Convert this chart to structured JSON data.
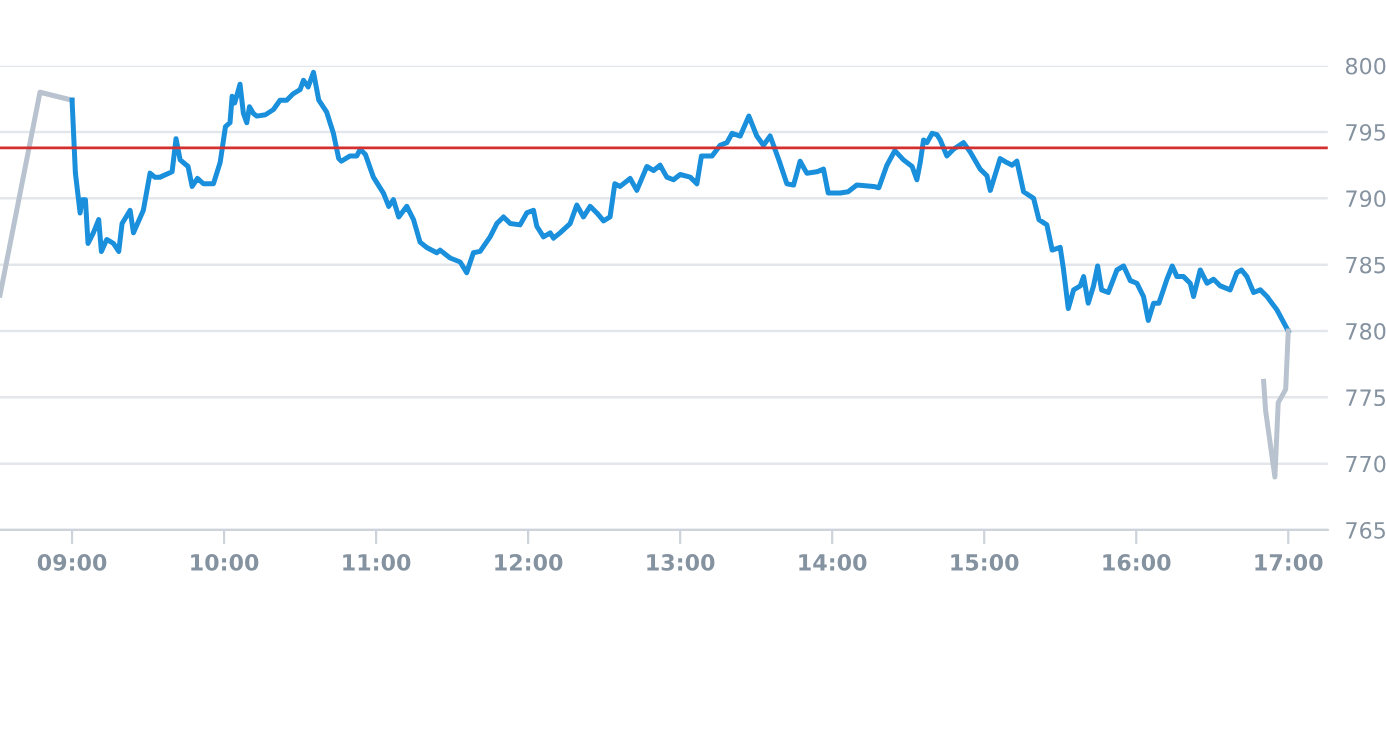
{
  "chart_data": {
    "type": "line",
    "xlim": [
      8.526,
      17.26
    ],
    "ylim": [
      765,
      800
    ],
    "xticks": [
      {
        "value": 9,
        "label": "09:00"
      },
      {
        "value": 10,
        "label": "10:00"
      },
      {
        "value": 11,
        "label": "11:00"
      },
      {
        "value": 12,
        "label": "12:00"
      },
      {
        "value": 13,
        "label": "13:00"
      },
      {
        "value": 14,
        "label": "14:00"
      },
      {
        "value": 15,
        "label": "15:00"
      },
      {
        "value": 16,
        "label": "16:00"
      },
      {
        "value": 17,
        "label": "17:00"
      }
    ],
    "yticks": [
      765,
      770,
      775,
      780,
      785,
      790,
      795,
      800
    ],
    "grid": "y",
    "legend": false,
    "marker": "none",
    "line_style": "solid",
    "ref_lines": [
      {
        "axis": "y",
        "value": 793.8,
        "color": "#d32f2f"
      }
    ],
    "series": [
      {
        "color": "#b8c3cf",
        "x": [
          8.526,
          8.789,
          9.0
        ],
        "values": [
          782.7,
          798.0,
          797.4
        ]
      },
      {
        "color": "#1a8fdc",
        "x": [
          9.0,
          9.022,
          9.053,
          9.066,
          9.088,
          9.105,
          9.14,
          9.175,
          9.193,
          9.228,
          9.272,
          9.307,
          9.329,
          9.382,
          9.404,
          9.469,
          9.513,
          9.544,
          9.579,
          9.658,
          9.684,
          9.711,
          9.763,
          9.79,
          9.825,
          9.864,
          9.93,
          9.974,
          10.009,
          10.039,
          10.053,
          10.07,
          10.105,
          10.127,
          10.149,
          10.167,
          10.193,
          10.215,
          10.272,
          10.325,
          10.368,
          10.412,
          10.456,
          10.5,
          10.522,
          10.553,
          10.588,
          10.623,
          10.675,
          10.719,
          10.754,
          10.772,
          10.829,
          10.873,
          10.895,
          10.93,
          10.982,
          11.048,
          11.083,
          11.114,
          11.149,
          11.202,
          11.246,
          11.289,
          11.333,
          11.399,
          11.421,
          11.487,
          11.553,
          11.596,
          11.64,
          11.684,
          11.75,
          11.794,
          11.838,
          11.882,
          11.947,
          11.991,
          12.035,
          12.057,
          12.101,
          12.145,
          12.167,
          12.21,
          12.276,
          12.32,
          12.364,
          12.408,
          12.452,
          12.496,
          12.539,
          12.57,
          12.605,
          12.671,
          12.715,
          12.781,
          12.825,
          12.868,
          12.912,
          12.956,
          13.0,
          13.066,
          13.11,
          13.14,
          13.21,
          13.263,
          13.307,
          13.342,
          13.395,
          13.452,
          13.504,
          13.548,
          13.592,
          13.649,
          13.702,
          13.746,
          13.789,
          13.833,
          13.899,
          13.943,
          13.974,
          14.053,
          14.105,
          14.162,
          14.272,
          14.307,
          14.36,
          14.412,
          14.469,
          14.526,
          14.557,
          14.579,
          14.601,
          14.623,
          14.658,
          14.689,
          14.711,
          14.754,
          14.798,
          14.864,
          14.908,
          14.974,
          15.018,
          15.04,
          15.105,
          15.149,
          15.184,
          15.215,
          15.259,
          15.325,
          15.36,
          15.412,
          15.447,
          15.5,
          15.522,
          15.553,
          15.588,
          15.632,
          15.654,
          15.684,
          15.719,
          15.746,
          15.772,
          15.816,
          15.873,
          15.917,
          15.961,
          16.004,
          16.048,
          16.079,
          16.114,
          16.149,
          16.202,
          16.237,
          16.268,
          16.311,
          16.355,
          16.377,
          16.421,
          16.465,
          16.509,
          16.553,
          16.618,
          16.662,
          16.693,
          16.728,
          16.772,
          16.816,
          16.86,
          16.925,
          17.0
        ],
        "values": [
          797.4,
          791.9,
          788.9,
          789.9,
          789.9,
          786.6,
          787.4,
          788.4,
          786.0,
          786.9,
          786.6,
          786.0,
          788.1,
          789.1,
          787.4,
          789.1,
          791.9,
          791.6,
          791.6,
          792.0,
          794.5,
          792.9,
          792.4,
          790.9,
          791.5,
          791.1,
          791.1,
          792.7,
          795.4,
          795.7,
          797.7,
          797.2,
          798.6,
          796.4,
          795.7,
          796.9,
          796.4,
          796.2,
          796.3,
          796.7,
          797.4,
          797.4,
          797.9,
          798.2,
          798.9,
          798.4,
          799.5,
          797.4,
          796.5,
          794.9,
          793.0,
          792.8,
          793.2,
          793.2,
          793.7,
          793.3,
          791.6,
          790.4,
          789.4,
          789.9,
          788.6,
          789.4,
          788.4,
          786.7,
          786.3,
          785.9,
          786.1,
          785.5,
          785.2,
          784.4,
          785.9,
          786.0,
          787.1,
          788.1,
          788.6,
          788.1,
          788.0,
          788.9,
          789.1,
          787.9,
          787.1,
          787.4,
          787.0,
          787.4,
          788.1,
          789.5,
          788.6,
          789.4,
          788.9,
          788.3,
          788.6,
          791.1,
          790.9,
          791.5,
          790.6,
          792.4,
          792.1,
          792.5,
          791.6,
          791.4,
          791.8,
          791.6,
          791.1,
          793.2,
          793.2,
          794.0,
          794.2,
          794.9,
          794.7,
          796.2,
          794.7,
          794.0,
          794.7,
          792.9,
          791.1,
          791.0,
          792.8,
          791.9,
          792.0,
          792.2,
          790.4,
          790.4,
          790.5,
          791.0,
          790.9,
          790.8,
          792.5,
          793.6,
          792.9,
          792.4,
          791.4,
          792.7,
          794.4,
          794.2,
          794.9,
          794.8,
          794.4,
          793.2,
          793.7,
          794.2,
          793.5,
          792.2,
          791.7,
          790.6,
          793.0,
          792.7,
          792.5,
          792.8,
          790.5,
          790.0,
          788.4,
          788.0,
          786.1,
          786.3,
          784.6,
          781.7,
          783.1,
          783.4,
          784.1,
          782.1,
          783.4,
          784.9,
          783.1,
          782.9,
          784.6,
          784.9,
          783.8,
          783.6,
          782.6,
          780.8,
          782.1,
          782.1,
          783.9,
          784.9,
          784.1,
          784.1,
          783.6,
          782.6,
          784.6,
          783.6,
          783.9,
          783.4,
          783.1,
          784.4,
          784.6,
          784.1,
          782.9,
          783.1,
          782.6,
          781.6,
          780.0
        ]
      },
      {
        "color": "#b8c3cf",
        "x": [
          16.838,
          16.851,
          16.912,
          16.934,
          16.983,
          17.0
        ],
        "values": [
          776.2,
          774.0,
          769.0,
          774.6,
          775.6,
          780.0
        ]
      }
    ]
  }
}
